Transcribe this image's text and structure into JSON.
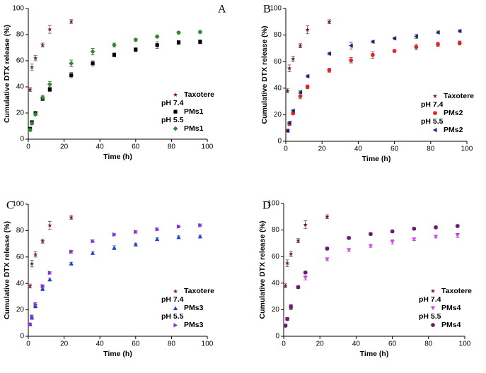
{
  "chart_data": [
    {
      "type": "scatter",
      "panel": "A",
      "xlabel": "Time (h)",
      "ylabel": "Cumulative DTX release (%)",
      "xlim": [
        0,
        100
      ],
      "xticks": [
        0,
        20,
        40,
        60,
        80,
        100
      ],
      "ylim": [
        0,
        100
      ],
      "yticks": [
        0,
        20,
        40,
        60,
        80,
        100
      ],
      "legend_headings": [
        "pH 7.4",
        "pH 5.5"
      ],
      "series": [
        {
          "name": "Taxotere",
          "color": "#7b1c1c",
          "marker": "star",
          "x": [
            1,
            2,
            4,
            8,
            12,
            24
          ],
          "values": [
            38,
            55,
            62,
            72,
            84,
            90
          ],
          "errors": [
            1.5,
            2.5,
            2,
            1.5,
            3,
            1.5
          ]
        },
        {
          "name": "PMs1",
          "color": "#000000",
          "marker": "square",
          "x": [
            1,
            2,
            4,
            8,
            12,
            24,
            36,
            48,
            60,
            72,
            84,
            96
          ],
          "values": [
            8,
            13,
            20,
            31,
            38,
            49,
            58,
            64.5,
            68.5,
            72,
            74,
            74.5
          ],
          "errors": [
            1,
            1,
            1,
            1.5,
            1.5,
            2,
            2,
            1.5,
            1.5,
            2.5,
            1.5,
            1.5
          ]
        },
        {
          "name": "PMs1",
          "color": "#2e8b2e",
          "marker": "diamond",
          "x": [
            1,
            2,
            4,
            8,
            12,
            24,
            36,
            48,
            60,
            72,
            84,
            96
          ],
          "values": [
            7,
            12,
            19,
            32,
            42,
            58,
            67,
            72,
            76,
            78.5,
            81.5,
            82
          ],
          "errors": [
            1,
            1,
            1,
            1.5,
            2,
            2.5,
            2.5,
            1.5,
            1,
            1,
            1,
            1
          ]
        }
      ]
    },
    {
      "type": "scatter",
      "panel": "B",
      "xlabel": "Time (h)",
      "ylabel": "Cumulative DTX release (%)",
      "xlim": [
        0,
        100
      ],
      "xticks": [
        0,
        20,
        40,
        60,
        80,
        100
      ],
      "ylim": [
        0,
        100
      ],
      "yticks": [
        0,
        20,
        40,
        60,
        80,
        100
      ],
      "legend_headings": [
        "pH 7.4",
        "pH 5.5"
      ],
      "series": [
        {
          "name": "Taxotere",
          "color": "#7b1c1c",
          "marker": "star",
          "x": [
            1,
            2,
            4,
            8,
            12,
            24
          ],
          "values": [
            38,
            55,
            62,
            72,
            84,
            90
          ],
          "errors": [
            1.5,
            2.5,
            2,
            1.5,
            3,
            1.5
          ]
        },
        {
          "name": "PMs2",
          "color": "#e8202a",
          "marker": "circle",
          "x": [
            1,
            2,
            4,
            8,
            12,
            24,
            36,
            48,
            60,
            72,
            84,
            96
          ],
          "values": [
            8,
            13,
            21,
            34,
            41,
            53.5,
            61,
            65,
            68,
            71,
            73,
            74
          ],
          "errors": [
            1,
            1,
            1,
            2,
            1.5,
            1.5,
            2,
            2.5,
            1,
            2,
            1.5,
            1.5
          ]
        },
        {
          "name": "PMs2",
          "color": "#1a237e",
          "marker": "triangle-left",
          "x": [
            1,
            2,
            4,
            8,
            12,
            24,
            36,
            48,
            60,
            72,
            84,
            96
          ],
          "values": [
            8,
            14,
            23,
            37,
            49,
            66,
            72,
            75,
            77.5,
            79,
            82,
            83
          ],
          "errors": [
            1,
            1,
            1,
            1,
            1,
            1,
            2.5,
            1,
            1,
            1.5,
            1,
            1
          ]
        }
      ]
    },
    {
      "type": "scatter",
      "panel": "C",
      "xlabel": "Time (h)",
      "ylabel": "Cumulative DTX release (%)",
      "xlim": [
        0,
        100
      ],
      "xticks": [
        0,
        20,
        40,
        60,
        80,
        100
      ],
      "ylim": [
        0,
        100
      ],
      "yticks": [
        0,
        20,
        40,
        60,
        80,
        100
      ],
      "legend_headings": [
        "pH 7.4",
        "pH 5.5"
      ],
      "series": [
        {
          "name": "Taxotere",
          "color": "#7b1c1c",
          "marker": "star",
          "x": [
            1,
            2,
            4,
            8,
            12,
            24
          ],
          "values": [
            38,
            55,
            62,
            72,
            84,
            90
          ],
          "errors": [
            1.5,
            2.5,
            2,
            1.5,
            3,
            1.5
          ]
        },
        {
          "name": "PMs3",
          "color": "#1f3fd6",
          "marker": "triangle-up",
          "x": [
            1,
            2,
            4,
            8,
            12,
            24,
            36,
            48,
            60,
            72,
            84,
            96
          ],
          "values": [
            9,
            14,
            23,
            36,
            43,
            55,
            63,
            67,
            69.5,
            73.5,
            75,
            75.5
          ],
          "errors": [
            1,
            1,
            1.5,
            1.5,
            1,
            1,
            1,
            1.5,
            1,
            1,
            1,
            1
          ]
        },
        {
          "name": "PMs3",
          "color": "#8a2be2",
          "marker": "triangle-right",
          "x": [
            1,
            2,
            4,
            8,
            12,
            24,
            36,
            48,
            60,
            72,
            84,
            96
          ],
          "values": [
            9,
            15,
            24,
            38,
            48,
            64,
            72,
            77,
            79,
            81,
            83,
            84
          ],
          "errors": [
            1,
            1,
            1.5,
            1,
            1,
            1,
            1,
            1,
            1,
            1,
            1,
            1
          ]
        }
      ]
    },
    {
      "type": "scatter",
      "panel": "D",
      "xlabel": "Time (h)",
      "ylabel": "Cumulative DTX release (%)",
      "xlim": [
        0,
        100
      ],
      "xticks": [
        0,
        20,
        40,
        60,
        80,
        100
      ],
      "ylim": [
        0,
        100
      ],
      "yticks": [
        0,
        20,
        40,
        60,
        80,
        100
      ],
      "legend_headings": [
        "pH 7.4",
        "pH 5.5"
      ],
      "series": [
        {
          "name": "Taxotere",
          "color": "#7b1c1c",
          "marker": "star",
          "x": [
            1,
            2,
            4,
            8,
            12,
            24
          ],
          "values": [
            38,
            55,
            62,
            72,
            84,
            90
          ],
          "errors": [
            1.5,
            2.5,
            2,
            1.5,
            3,
            1.5
          ]
        },
        {
          "name": "PMs4",
          "color": "#e040fb",
          "marker": "triangle-down",
          "x": [
            1,
            2,
            4,
            8,
            12,
            24,
            36,
            48,
            60,
            72,
            84,
            96
          ],
          "values": [
            8,
            13,
            22,
            37,
            44,
            58,
            65,
            68,
            71,
            73,
            75,
            76
          ],
          "errors": [
            1,
            1,
            1.5,
            1,
            1.5,
            1,
            1,
            1,
            1.5,
            1,
            1,
            1.5
          ]
        },
        {
          "name": "PMs4",
          "color": "#6a1b6a",
          "marker": "circle",
          "x": [
            1,
            2,
            4,
            8,
            12,
            24,
            36,
            48,
            60,
            72,
            84,
            96
          ],
          "values": [
            8,
            13,
            22,
            37,
            48,
            66,
            74,
            77,
            79,
            81,
            82,
            83
          ],
          "errors": [
            1,
            1,
            2,
            1,
            1,
            1,
            1,
            1,
            1,
            1,
            1,
            1
          ]
        }
      ]
    }
  ]
}
